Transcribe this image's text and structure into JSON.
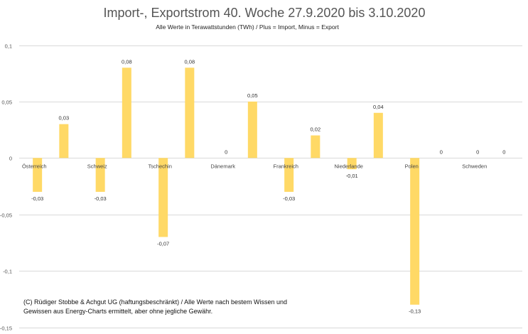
{
  "chart_data": {
    "type": "bar",
    "title": "Import-, Exportstrom 40. Woche 27.9.2020 bis 3.10.2020",
    "subtitle": "Alle Werte in Terawattstunden (TWh) / Plus = Import, Minus = Export",
    "xlabel": "",
    "ylabel": "",
    "ylim": [
      -0.15,
      0.1
    ],
    "yticks": [
      0.1,
      0.05,
      0,
      -0.05,
      -0.1,
      -0.15
    ],
    "ytick_labels": [
      "0,1",
      "0,05",
      "0",
      "-0,05",
      "-0,1",
      "-0,15"
    ],
    "grid": true,
    "bar_color": "#FFD966",
    "grid_color": "#D9D9D9",
    "categories": [
      "Österreich",
      "Schweiz",
      "Tschechin",
      "Dänemark",
      "Frankreich",
      "Niederlande",
      "Polen",
      "Schweden"
    ],
    "series": [
      {
        "name": "Export",
        "values": [
          -0.03,
          -0.03,
          -0.07,
          0,
          -0.03,
          -0.01,
          -0.13,
          0
        ],
        "labels": [
          "-0,03",
          "-0,03",
          "-0,07",
          "0",
          "-0,03",
          "-0,01",
          "-0,13",
          "0"
        ]
      },
      {
        "name": "Import",
        "values": [
          0.03,
          0.08,
          0.08,
          0.05,
          0.02,
          0.04,
          0,
          0
        ],
        "labels": [
          "0,03",
          "0,08",
          "0,08",
          "0,05",
          "0,02",
          "0,04",
          "0",
          "0"
        ]
      }
    ]
  },
  "footnote": {
    "line1": "(C) Rüdiger Stobbe & Achgut UG (haftungsbeschränkt) / Alle Werte nach bestem Wissen und",
    "line2": "Gewissen aus Energy-Charts ermittelt, aber ohne jegliche Gewähr."
  }
}
